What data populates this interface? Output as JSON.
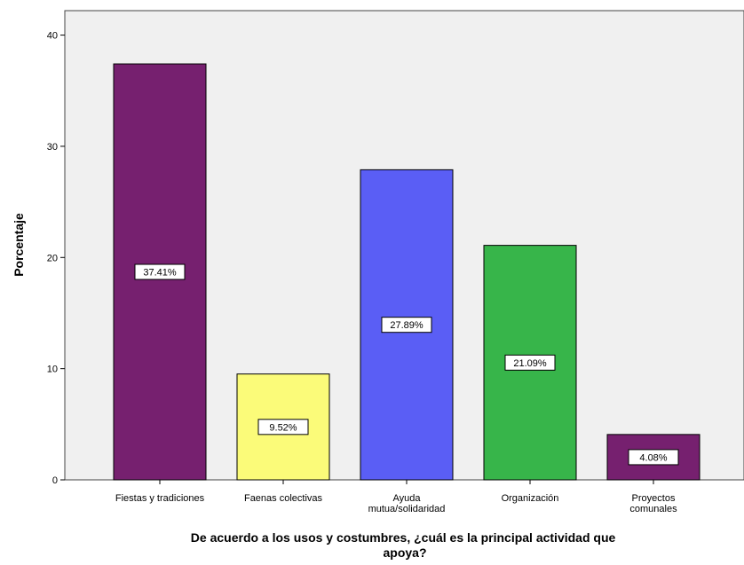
{
  "chart_data": {
    "type": "bar",
    "categories": [
      [
        "Fiestas y tradiciones"
      ],
      [
        "Faenas colectivas"
      ],
      [
        "Ayuda",
        "mutua/solidaridad"
      ],
      [
        "Organización"
      ],
      [
        "Proyectos",
        "comunales"
      ]
    ],
    "values": [
      37.41,
      9.52,
      27.89,
      21.09,
      4.08
    ],
    "data_labels": [
      "37.41%",
      "9.52%",
      "27.89%",
      "21.09%",
      "4.08%"
    ],
    "colors": [
      "#76206f",
      "#fbfb79",
      "#5a5ef5",
      "#37b54a",
      "#76206f"
    ],
    "ylabel": "Porcentaje",
    "xlabel": [
      "De acuerdo a los usos y costumbres, ¿cuál es la principal actividad que",
      "apoya?"
    ],
    "yticks": [
      "0",
      "10",
      "20",
      "30",
      "40"
    ],
    "ylim": [
      0,
      42.2
    ],
    "grid": false,
    "plot_background": "#f0f0f0"
  }
}
